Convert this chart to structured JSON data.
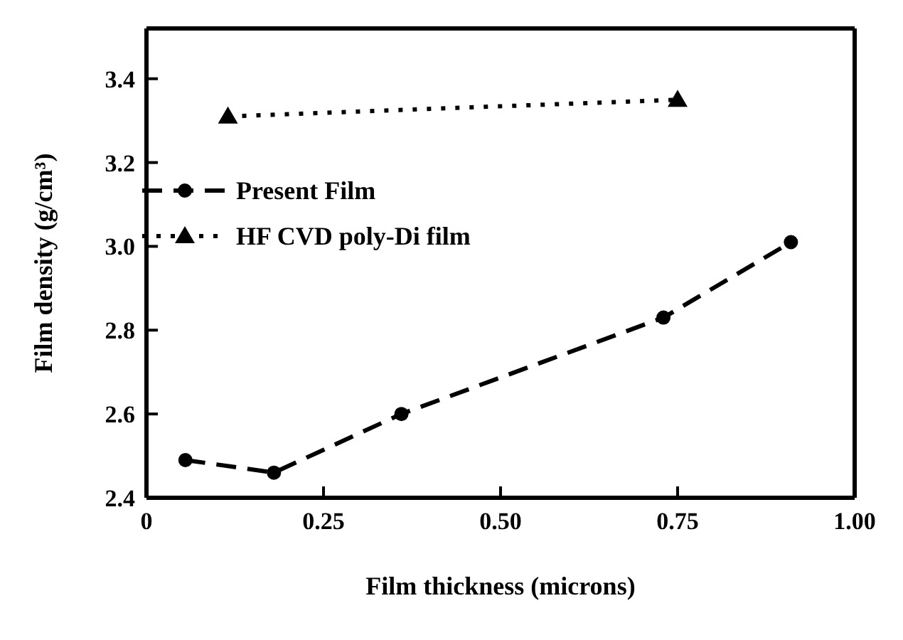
{
  "chart_data": {
    "type": "line",
    "xlabel": "Film thickness (microns)",
    "ylabel": "Film density (g/cm³)",
    "xlim": [
      0,
      1
    ],
    "xticks": [
      {
        "value": 0,
        "label": "0"
      },
      {
        "value": 0.25,
        "label": "0.25"
      },
      {
        "value": 0.5,
        "label": "0.50"
      },
      {
        "value": 0.75,
        "label": "0.75"
      },
      {
        "value": 1,
        "label": "1.00"
      }
    ],
    "ylim": [
      2.4,
      3.52
    ],
    "yticks": [
      2.4,
      2.6,
      2.8,
      {
        "value": 3,
        "label": "3.0"
      },
      3.2,
      3.4
    ],
    "grid": false,
    "legend": "top left",
    "series": [
      {
        "name": "Present Film",
        "color": "#000000",
        "marker": "circle",
        "line_style": "dashed",
        "x": [
          0.055,
          0.18,
          0.36,
          0.73,
          0.91
        ],
        "values": [
          2.49,
          2.46,
          2.6,
          2.83,
          3.01
        ]
      },
      {
        "name": "HF CVD poly-Di film",
        "color": "#000000",
        "marker": "triangle",
        "line_style": "dotted",
        "x": [
          0.115,
          0.75
        ],
        "values": [
          3.31,
          3.35
        ]
      }
    ]
  }
}
